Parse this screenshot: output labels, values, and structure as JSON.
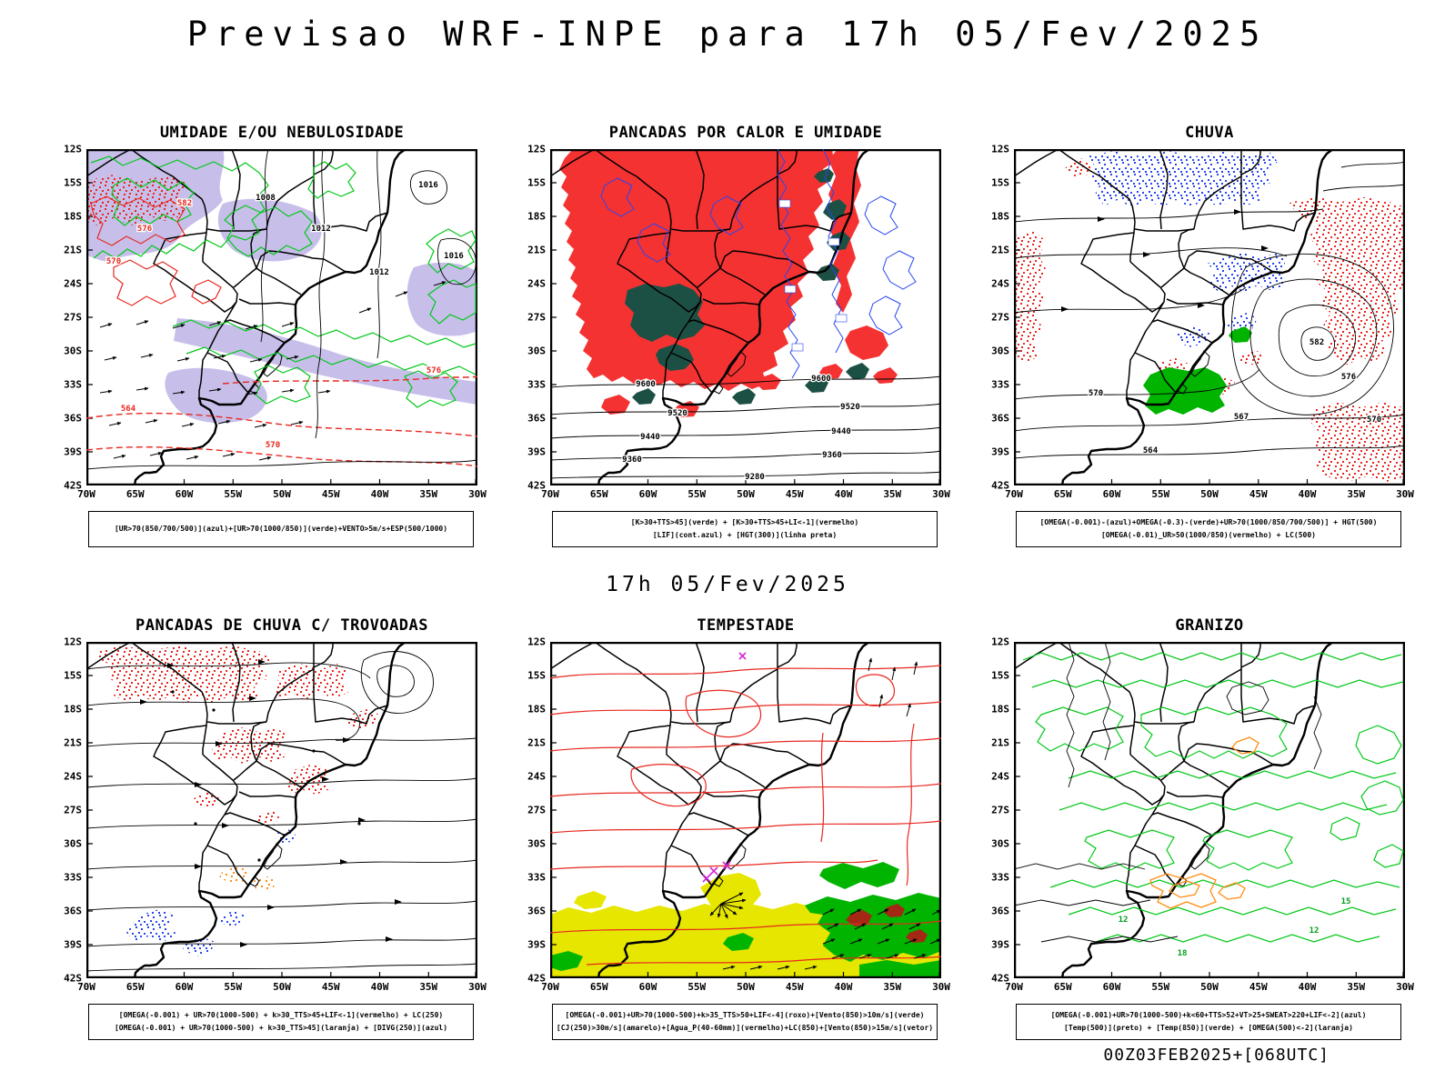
{
  "page": {
    "title": "Previsao WRF-INPE  para 17h 05/Fev/2025",
    "center_time": "17h 05/Fev/2025",
    "footer": "00Z03FEB2025+[068UTC]"
  },
  "axes": {
    "lat_ticks": [
      "12S",
      "15S",
      "18S",
      "21S",
      "24S",
      "27S",
      "30S",
      "33S",
      "36S",
      "39S",
      "42S"
    ],
    "lon_ticks": [
      "70W",
      "65W",
      "60W",
      "55W",
      "50W",
      "45W",
      "40W",
      "35W",
      "30W"
    ]
  },
  "palette": {
    "humidity_shade": "#bdb4e6",
    "green_contour": "#00c818",
    "red": "#e82820",
    "blue": "#2846f0",
    "orange": "#ff8c14",
    "teal_fill": "#1d5045",
    "red_fill": "#f53232",
    "yellow_fill": "#e6e600",
    "green_fill": "#00b400",
    "magenta": "#d428d4",
    "dark_red": "#a52814",
    "black": "#000000"
  },
  "panels": [
    {
      "id": "umidade",
      "title": "UMIDADE E/OU NEBULOSIDADE",
      "caption_lines": [
        "[UR>70(850/700/500)](azul)+[UR>70(1000/850)](verde)+VENTO>5m/s+ESP(500/1000)"
      ],
      "map_labels": [
        "582",
        "576",
        "570",
        "1008",
        "1012",
        "1012",
        "1016",
        "1016",
        "564",
        "570",
        "576"
      ]
    },
    {
      "id": "pancadas_calor",
      "title": "PANCADAS POR CALOR E UMIDADE",
      "caption_lines": [
        "[K>30+TTS>45](verde) + [K>30+TTS>45+LI<-1](vermelho)",
        "[LIF](cont.azul) + [HGT(300)](linha preta)"
      ],
      "map_labels": [
        "9600",
        "9600",
        "9520",
        "9520",
        "9440",
        "9440",
        "9360",
        "9360",
        "9280"
      ]
    },
    {
      "id": "chuva",
      "title": "CHUVA",
      "caption_lines": [
        "[OMEGA(-0.001)-(azul)+OMEGA(-0.3)-(verde)+UR>70(1000/850/700/500)] + HGT(500)",
        "[OMEGA(-0.01)_UR>50(1000/850)(vermelho) + LC(500)"
      ],
      "map_labels": [
        "582",
        "576",
        "570",
        "567",
        "564",
        "570"
      ]
    },
    {
      "id": "trovoadas",
      "title": "PANCADAS DE CHUVA C/ TROVOADAS",
      "caption_lines": [
        "[OMEGA(-0.001) + UR>70(1000-500) + k>30_TTS>45+LIF<-1](vermelho) + LC(250)",
        "[OMEGA(-0.001) + UR>70(1000-500) + k>30_TTS>45](laranja) + [DIVG(250)](azul)"
      ],
      "map_labels": []
    },
    {
      "id": "tempestade",
      "title": "TEMPESTADE",
      "caption_lines": [
        "[OMEGA(-0.001)+UR>70(1000-500)+k>35_TTS>50+LIF<-4](roxo)+[Vento(850)>10m/s](verde)",
        "[CJ(250)>30m/s](amarelo)+[Agua_P(40-60mm)](vermelho)+LC(850)+[Vento(850)>15m/s](vetor)"
      ],
      "map_labels": []
    },
    {
      "id": "granizo",
      "title": "GRANIZO",
      "caption_lines": [
        "[OMEGA(-0.001)+UR>70(1000-500)+k<60+TTS>52+VT>25+SWEAT>220+LIF<-2](azul)",
        "[Temp(500)](preto) + [Temp(850)](verde) + [OMEGA(500)<-2](laranja)"
      ],
      "map_labels": [
        "15",
        "12",
        "18",
        "12"
      ]
    }
  ]
}
